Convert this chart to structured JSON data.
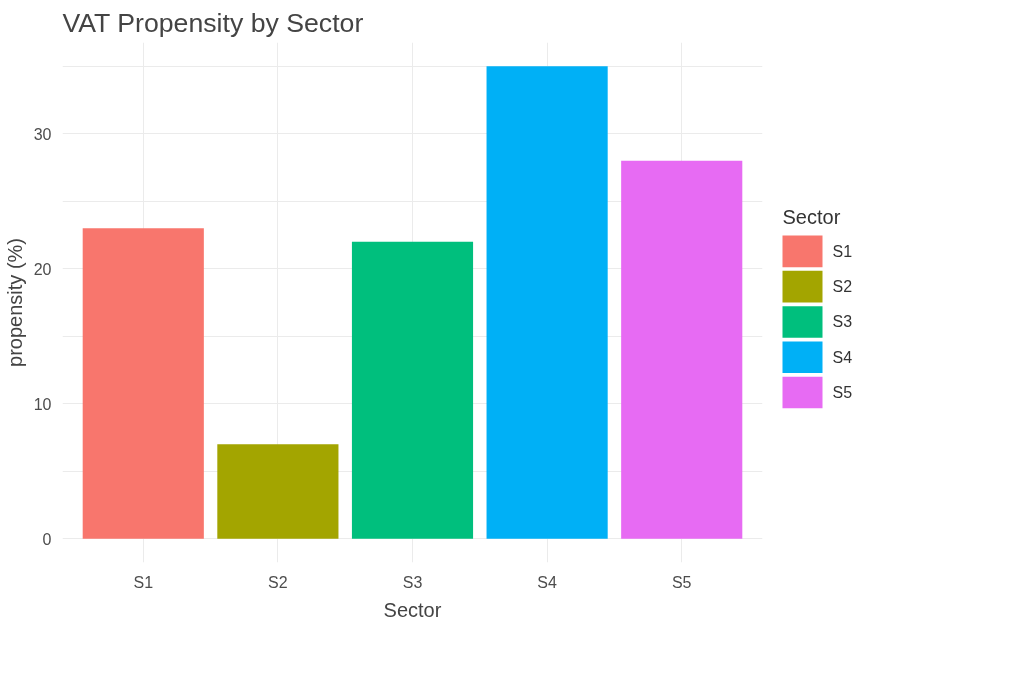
{
  "chart_data": {
    "type": "bar",
    "title": "VAT Propensity by Sector",
    "xlabel": "Sector",
    "ylabel": "propensity (%)",
    "legend_title": "Sector",
    "categories": [
      "S1",
      "S2",
      "S3",
      "S4",
      "S5"
    ],
    "series": [
      {
        "name": "S1",
        "color": "#f8766d",
        "values": [
          23,
          null,
          null,
          null,
          null
        ]
      },
      {
        "name": "S2",
        "color": "#a3a500",
        "values": [
          null,
          7,
          null,
          null,
          null
        ]
      },
      {
        "name": "S3",
        "color": "#00bf7d",
        "values": [
          null,
          null,
          22,
          null,
          null
        ]
      },
      {
        "name": "S4",
        "color": "#00b0f6",
        "values": [
          null,
          null,
          null,
          35,
          null
        ]
      },
      {
        "name": "S5",
        "color": "#e76bf3",
        "values": [
          null,
          null,
          null,
          null,
          28
        ]
      }
    ],
    "ylim": [
      -1.75,
      36.75
    ],
    "yticks": [
      0,
      {
        "value": 5,
        "label": null
      },
      10,
      {
        "value": 15,
        "label": null
      },
      20,
      {
        "value": 25,
        "label": null
      },
      30,
      {
        "value": 35,
        "label": null
      }
    ],
    "grid": true,
    "legend": "right"
  }
}
